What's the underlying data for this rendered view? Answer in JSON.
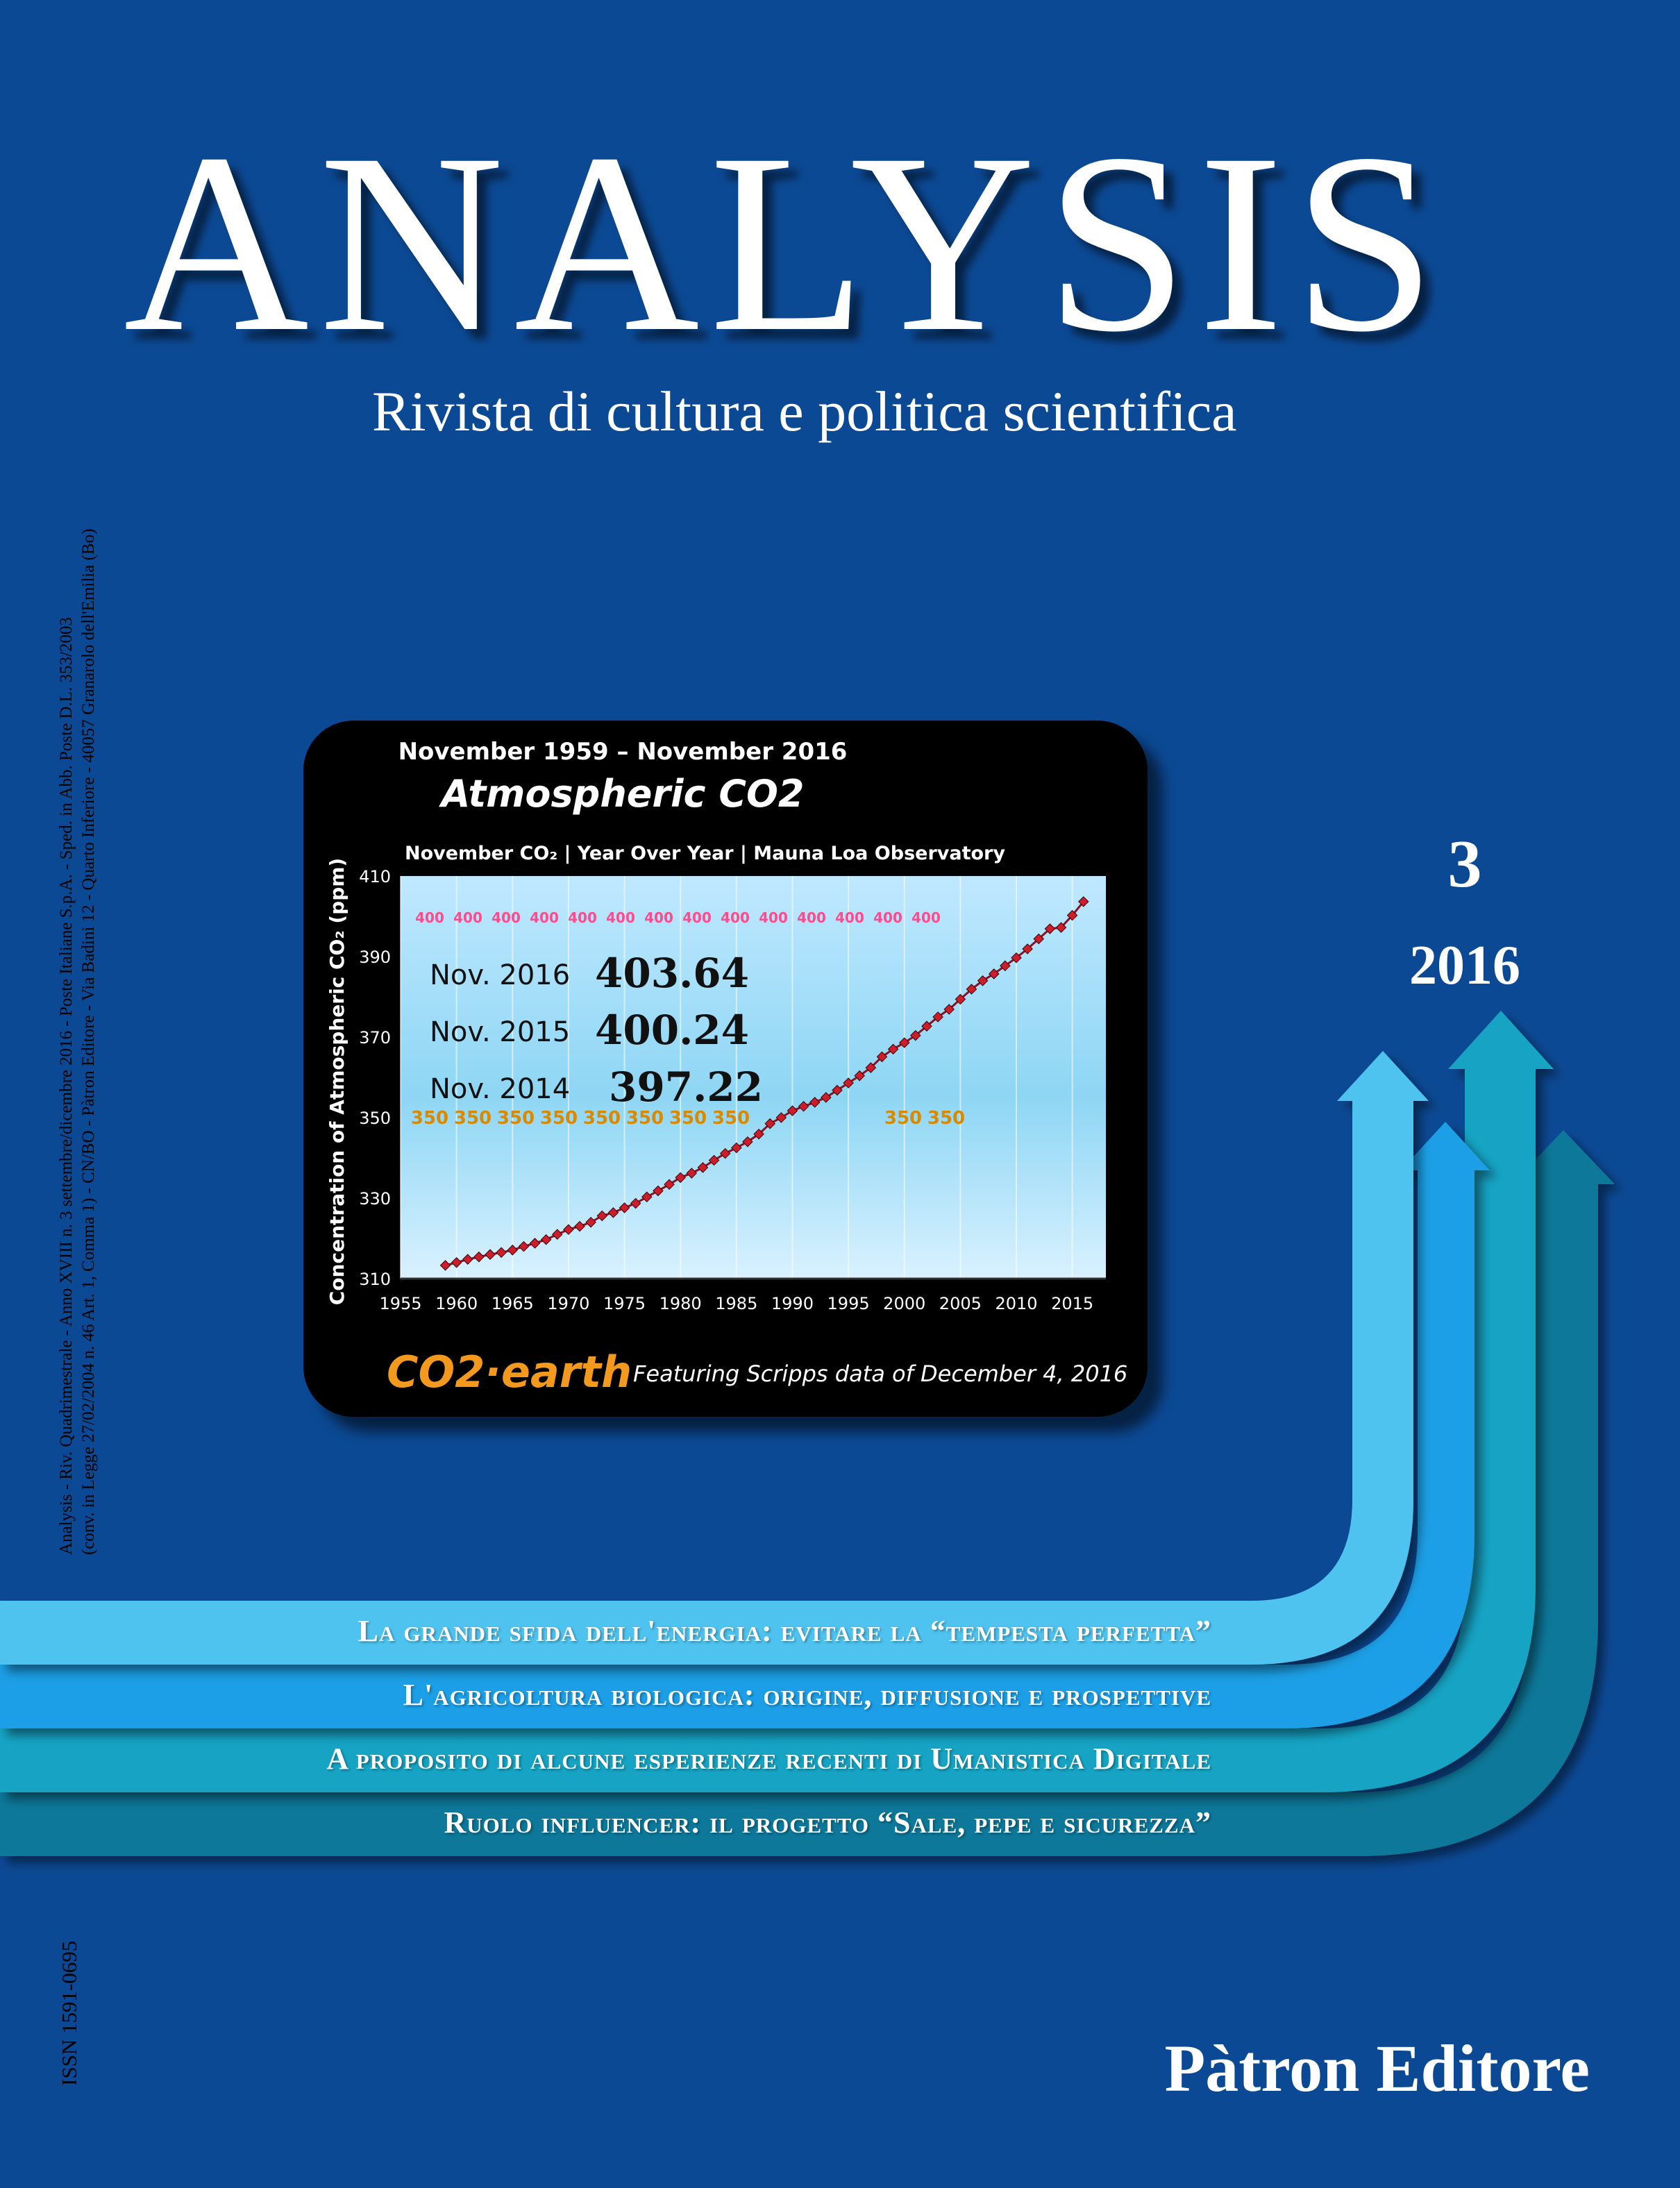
{
  "magazine": {
    "title": "ANALYSIS",
    "subtitle": "Rivista di cultura e politica scientifica",
    "issue_number": "3",
    "issue_year": "2016",
    "publisher": "Pàtron Editore",
    "issn": "ISSN 1591-0695",
    "spine_line1": "Analysis - Riv. Quadrimestrale - Anno XVIII n. 3 settembre/dicembre 2016 - Poste Italiane S.p.A. - Sped. in Abb. Poste D.L. 353/2003",
    "spine_line2": "(conv. in Legge 27/02/2004 n. 46 Art. 1, Comma 1) - CN/BO - Pàtron Editore - Via Badini 12 - Quarto Inferiore - 40057 Granarolo dell'Emilia (Bo)"
  },
  "articles": [
    {
      "title": "La grande sfida dell'energia: evitare la “tempesta perfetta”",
      "color": "#4fc3ef"
    },
    {
      "title": "L'agricoltura biologica: origine, diffusione e prospettive",
      "color": "#1d9fe6"
    },
    {
      "title": "A proposito di alcune esperienze recenti di Umanistica Digitale",
      "color": "#17a3c4"
    },
    {
      "title": "Ruolo influencer: il progetto “Sale, pepe e sicurezza”",
      "color": "#10789a"
    }
  ],
  "colors": {
    "background": "#0c4994",
    "chart_frame": "#000000",
    "chart_line": "#cc1d2b",
    "ref400": "#ff4b8c",
    "ref350": "#d98a00"
  },
  "chart_data": {
    "type": "line",
    "header": "November 1959 – November 2016",
    "title": "Atmospheric CO2",
    "subtitle": "November CO₂  | Year Over Year | Mauna Loa Observatory",
    "ylabel": "Concentration of Atmospheric CO₂ (ppm)",
    "xlim": [
      1955,
      2018
    ],
    "ylim": [
      310,
      410
    ],
    "x_ticks": [
      1955,
      1960,
      1965,
      1970,
      1975,
      1980,
      1985,
      1990,
      1995,
      2000,
      2005,
      2010,
      2015
    ],
    "y_ticks": [
      310,
      330,
      350,
      370,
      390,
      410
    ],
    "ref_lines": [
      {
        "value": 400,
        "label": "400"
      },
      {
        "value": 350,
        "label": "350"
      }
    ],
    "callouts": [
      {
        "label": "Nov. 2016",
        "value": "403.64"
      },
      {
        "label": "Nov. 2015",
        "value": "400.24"
      },
      {
        "label": "Nov. 2014",
        "value": "397.22"
      }
    ],
    "series": [
      {
        "x": [
          1959,
          1960,
          1961,
          1962,
          1963,
          1964,
          1965,
          1966,
          1967,
          1968,
          1969,
          1970,
          1971,
          1972,
          1973,
          1974,
          1975,
          1976,
          1977,
          1978,
          1979,
          1980,
          1981,
          1982,
          1983,
          1984,
          1985,
          1986,
          1987,
          1988,
          1989,
          1990,
          1991,
          1992,
          1993,
          1994,
          1995,
          1996,
          1997,
          1998,
          1999,
          2000,
          2001,
          2002,
          2003,
          2004,
          2005,
          2006,
          2007,
          2008,
          2009,
          2010,
          2011,
          2012,
          2013,
          2014,
          2015,
          2016
        ],
        "y": [
          313.3,
          314.0,
          314.8,
          315.4,
          316.0,
          316.5,
          317.1,
          318.0,
          318.8,
          319.7,
          321.0,
          322.2,
          323.0,
          324.0,
          325.6,
          326.4,
          327.6,
          328.7,
          330.3,
          331.8,
          333.4,
          335.1,
          336.2,
          337.6,
          339.4,
          341.1,
          342.5,
          344.0,
          345.9,
          348.5,
          350.0,
          351.7,
          352.8,
          353.8,
          355.0,
          356.8,
          358.6,
          360.4,
          362.4,
          365.1,
          367.0,
          368.6,
          370.4,
          372.7,
          375.0,
          376.9,
          379.4,
          381.9,
          384.0,
          385.7,
          387.7,
          389.7,
          391.9,
          394.4,
          396.9,
          397.22,
          400.24,
          403.64
        ]
      }
    ],
    "footer_brand": "CO2·earth",
    "footer_text": "Featuring Scripps  data of December 4, 2016"
  }
}
